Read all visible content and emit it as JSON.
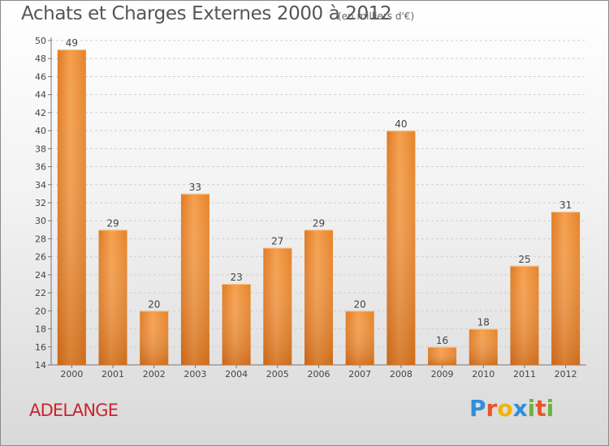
{
  "chart_data": {
    "type": "bar",
    "title": "Achats et Charges Externes 2000 à 2012",
    "subtitle": "(en milliers d'€)",
    "categories": [
      "2000",
      "2001",
      "2002",
      "2003",
      "2004",
      "2005",
      "2006",
      "2007",
      "2008",
      "2009",
      "2010",
      "2011",
      "2012"
    ],
    "values": [
      49,
      29,
      20,
      33,
      23,
      27,
      29,
      20,
      40,
      16,
      18,
      25,
      31
    ],
    "ylim": [
      14,
      50
    ],
    "yticks": [
      14,
      16,
      18,
      20,
      22,
      24,
      26,
      28,
      30,
      32,
      34,
      36,
      38,
      40,
      42,
      44,
      46,
      48,
      50
    ],
    "grid": true,
    "bar_color": "#f0903a",
    "xlabel": "",
    "ylabel": ""
  },
  "commune": "ADELANGE",
  "logo": {
    "letters": [
      "P",
      "r",
      "o",
      "x",
      "i",
      "t",
      "i"
    ],
    "colors": [
      "#2f8fd8",
      "#e8542c",
      "#f3b300",
      "#2f8fd8",
      "#6cb33f",
      "#e8542c",
      "#6cb33f"
    ]
  }
}
